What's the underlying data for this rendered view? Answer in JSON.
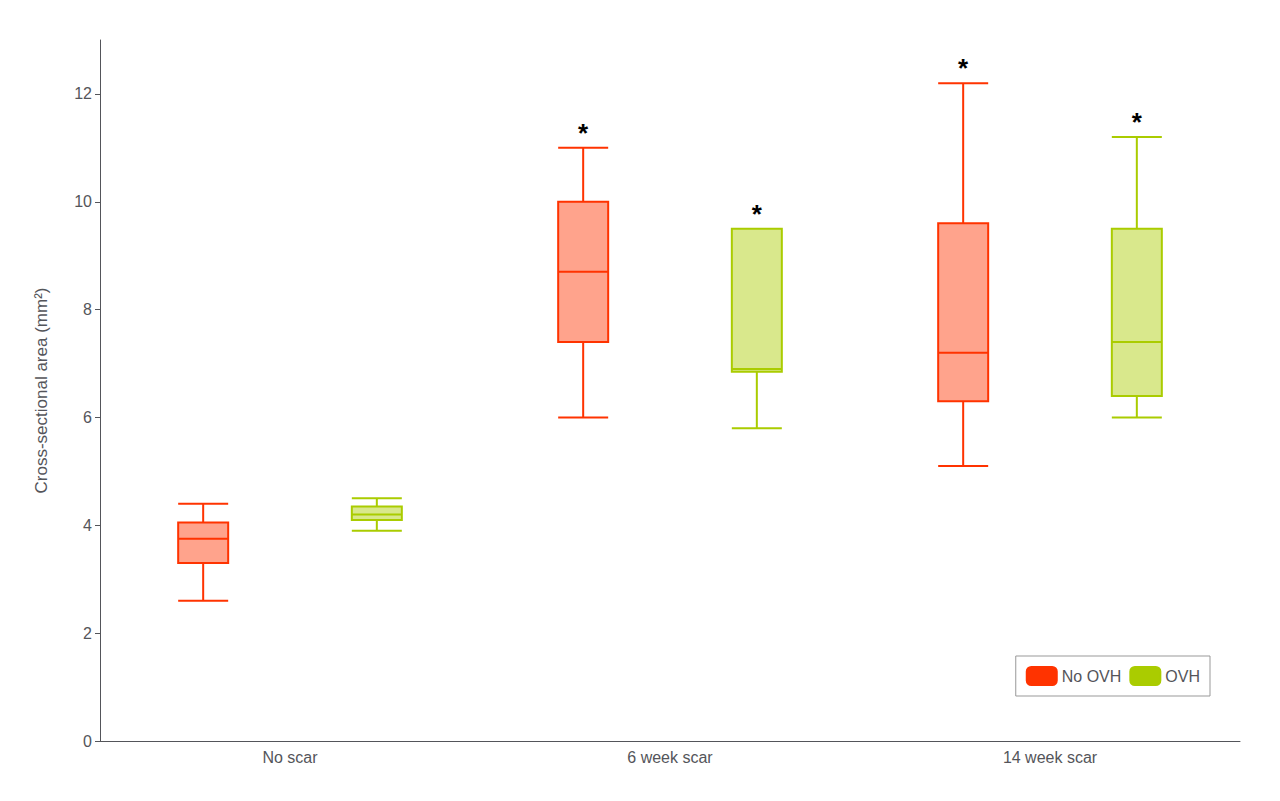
{
  "chart_data": {
    "type": "boxplot",
    "categories": [
      "No scar",
      "6 week scar",
      "14 week scar"
    ],
    "ylabel": "Cross-sectional area (mm²)",
    "ylim": [
      0,
      13
    ],
    "yticks": [
      0,
      2,
      4,
      6,
      8,
      10,
      12
    ],
    "grid": false,
    "legend": "lower right",
    "series": [
      {
        "name": "No OVH",
        "color": "#FF3300",
        "values": [
          {
            "whislo": 2.6,
            "q1": 3.3,
            "med": 3.75,
            "q3": 4.05,
            "whishi": 4.4
          },
          {
            "whislo": 6.0,
            "q1": 7.4,
            "med": 8.7,
            "q3": 10.0,
            "whishi": 11.0
          },
          {
            "whislo": 5.1,
            "q1": 6.3,
            "med": 7.2,
            "q3": 9.6,
            "whishi": 12.2
          }
        ]
      },
      {
        "name": "OVH",
        "color": "#AACC00",
        "values": [
          {
            "whislo": 3.9,
            "q1": 4.1,
            "med": 4.2,
            "q3": 4.35,
            "whishi": 4.5
          },
          {
            "whislo": 5.8,
            "q1": 6.85,
            "med": 6.9,
            "q3": 9.5,
            "whishi": 9.5
          },
          {
            "whislo": 6.0,
            "q1": 6.4,
            "med": 7.4,
            "q3": 9.5,
            "whishi": 11.2
          }
        ]
      }
    ],
    "annotations": [
      {
        "text": "*",
        "series": "No OVH",
        "category": "6 week scar"
      },
      {
        "text": "*",
        "series": "No OVH",
        "category": "14 week scar"
      },
      {
        "text": "*",
        "series": "OVH",
        "category": "6 week scar"
      },
      {
        "text": "*",
        "series": "OVH",
        "category": "14 week scar"
      }
    ]
  }
}
